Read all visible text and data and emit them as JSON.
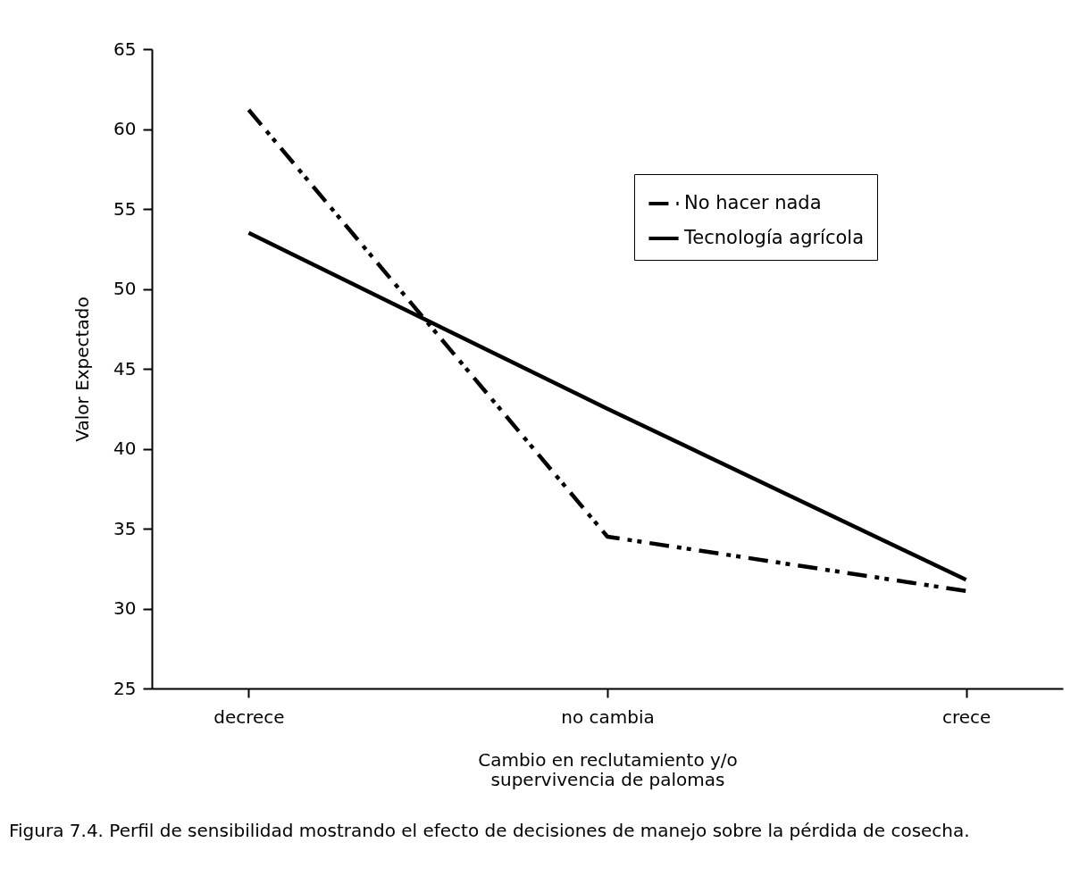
{
  "chart_data": {
    "type": "line",
    "xlabel": "Cambio en reclutamiento y/o supervivencia de palomas",
    "ylabel": "Valor Expectado",
    "categories": [
      "decrece",
      "no cambia",
      "crece"
    ],
    "series": [
      {
        "name": "No hacer nada",
        "color": "#000000",
        "line_style": "dashdotdot",
        "values": [
          61.2,
          34.5,
          31.1
        ]
      },
      {
        "name": "Tecnología agrícola",
        "color": "#000000",
        "line_style": "solid",
        "values": [
          53.5,
          42.5,
          31.8
        ]
      }
    ],
    "ylim": [
      25,
      65
    ],
    "yticks": [
      25,
      30,
      35,
      40,
      45,
      50,
      55,
      60,
      65
    ],
    "grid": false,
    "legend": "top right",
    "marker": "none",
    "annotations": [
      "Figura 7.4. Perfil de sensibilidad mostrando el efecto de decisiones de manejo sobre la pérdida de cosecha."
    ]
  }
}
